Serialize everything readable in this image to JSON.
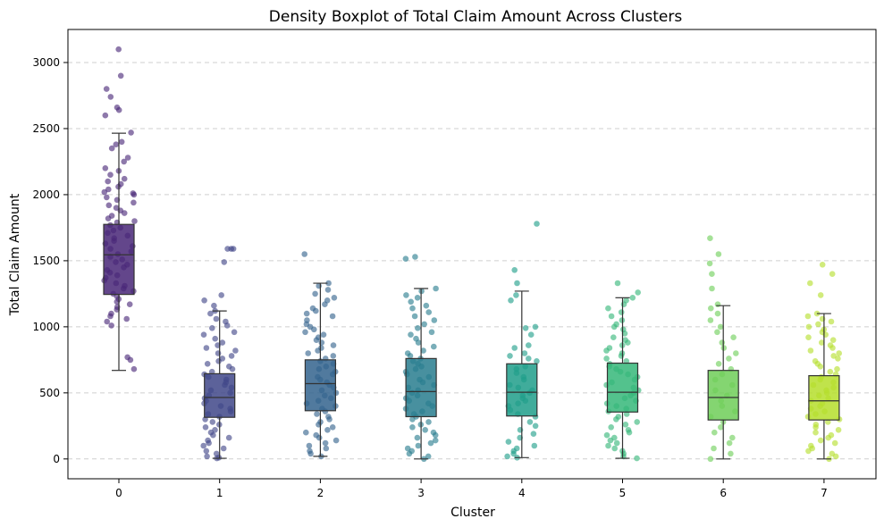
{
  "chart_data": {
    "type": "boxplot",
    "title": "Density Boxplot of Total Claim Amount Across Clusters",
    "xlabel": "Cluster",
    "ylabel": "Total Claim Amount",
    "categories": [
      "0",
      "1",
      "2",
      "3",
      "4",
      "5",
      "6",
      "7"
    ],
    "ylim": [
      -150,
      3250
    ],
    "yticks": [
      0,
      500,
      1000,
      1500,
      2000,
      2500,
      3000
    ],
    "grid": "horizontal-dashed",
    "boxes": [
      {
        "cluster": "0",
        "q1": 1245,
        "median": 1545,
        "q3": 1775,
        "whisker_low": 670,
        "whisker_high": 2465,
        "color": "#482677",
        "points": [
          3100,
          2900,
          2800,
          2740,
          2660,
          2640,
          2600,
          2470,
          2400,
          2380,
          2350,
          2280,
          2250,
          2200,
          2180,
          2150,
          2120,
          2100,
          2080,
          2060,
          2040,
          2020,
          2010,
          2000,
          1980,
          1960,
          1940,
          1920,
          1900,
          1880,
          1860,
          1840,
          1820,
          1800,
          1790,
          1770,
          1750,
          1730,
          1710,
          1690,
          1670,
          1650,
          1630,
          1610,
          1590,
          1570,
          1550,
          1530,
          1510,
          1490,
          1470,
          1450,
          1430,
          1410,
          1390,
          1370,
          1350,
          1330,
          1310,
          1290,
          1270,
          1250,
          1230,
          1210,
          1190,
          1170,
          1150,
          1130,
          1100,
          1080,
          1060,
          1040,
          1010,
          770,
          750,
          680
        ]
      },
      {
        "cluster": "1",
        "q1": 315,
        "median": 465,
        "q3": 645,
        "whisker_low": 5,
        "whisker_high": 1120,
        "color": "#404688",
        "points": [
          1590,
          1590,
          1590,
          1490,
          1240,
          1200,
          1160,
          1120,
          1100,
          1060,
          1040,
          1010,
          990,
          960,
          940,
          910,
          880,
          860,
          840,
          820,
          800,
          780,
          760,
          740,
          720,
          700,
          680,
          660,
          640,
          620,
          600,
          580,
          560,
          540,
          520,
          500,
          480,
          460,
          440,
          420,
          400,
          380,
          360,
          340,
          320,
          300,
          280,
          260,
          240,
          220,
          200,
          180,
          160,
          140,
          120,
          100,
          80,
          60,
          40,
          20,
          10,
          5
        ]
      },
      {
        "cluster": "2",
        "q1": 365,
        "median": 570,
        "q3": 750,
        "whisker_low": 20,
        "whisker_high": 1330,
        "color": "#33638d",
        "points": [
          1550,
          1330,
          1310,
          1280,
          1250,
          1220,
          1200,
          1170,
          1140,
          1120,
          1100,
          1080,
          1050,
          1020,
          1000,
          980,
          960,
          940,
          920,
          900,
          880,
          860,
          840,
          820,
          800,
          780,
          760,
          740,
          720,
          700,
          680,
          660,
          640,
          620,
          600,
          580,
          560,
          540,
          520,
          500,
          480,
          460,
          440,
          420,
          400,
          380,
          360,
          340,
          320,
          300,
          280,
          260,
          240,
          220,
          200,
          180,
          160,
          140,
          120,
          100,
          80,
          60,
          40,
          20
        ]
      },
      {
        "cluster": "3",
        "q1": 320,
        "median": 510,
        "q3": 760,
        "whisker_low": 0,
        "whisker_high": 1290,
        "color": "#287d8e",
        "points": [
          1530,
          1515,
          1290,
          1270,
          1240,
          1220,
          1190,
          1160,
          1140,
          1110,
          1080,
          1050,
          1020,
          990,
          960,
          940,
          910,
          880,
          850,
          820,
          800,
          780,
          760,
          740,
          720,
          700,
          680,
          660,
          640,
          620,
          600,
          580,
          560,
          540,
          520,
          500,
          480,
          460,
          440,
          420,
          400,
          380,
          360,
          340,
          320,
          300,
          280,
          260,
          240,
          220,
          200,
          180,
          160,
          140,
          120,
          100,
          80,
          60,
          40,
          20,
          0
        ]
      },
      {
        "cluster": "4",
        "q1": 325,
        "median": 505,
        "q3": 720,
        "whisker_low": 10,
        "whisker_high": 1270,
        "color": "#1f9e89",
        "points": [
          1780,
          1430,
          1330,
          1240,
          1200,
          1000,
          990,
          940,
          860,
          840,
          800,
          780,
          760,
          740,
          700,
          680,
          650,
          620,
          600,
          560,
          540,
          520,
          500,
          480,
          460,
          440,
          420,
          400,
          370,
          340,
          320,
          280,
          250,
          220,
          190,
          160,
          130,
          100,
          80,
          60,
          40,
          20,
          10
        ]
      },
      {
        "cluster": "5",
        "q1": 355,
        "median": 505,
        "q3": 725,
        "whisker_low": 5,
        "whisker_high": 1220,
        "color": "#35b779",
        "points": [
          1330,
          1260,
          1220,
          1200,
          1170,
          1140,
          1110,
          1080,
          1050,
          1020,
          1000,
          980,
          950,
          920,
          900,
          880,
          860,
          840,
          820,
          800,
          780,
          760,
          740,
          720,
          700,
          680,
          660,
          640,
          620,
          600,
          580,
          560,
          540,
          520,
          500,
          480,
          460,
          440,
          420,
          400,
          380,
          360,
          340,
          320,
          300,
          280,
          260,
          240,
          220,
          200,
          180,
          160,
          140,
          120,
          100,
          80,
          60,
          40,
          20,
          5
        ]
      },
      {
        "cluster": "6",
        "q1": 295,
        "median": 465,
        "q3": 670,
        "whisker_low": 0,
        "whisker_high": 1160,
        "color": "#6ece58",
        "points": [
          1670,
          1550,
          1480,
          1400,
          1290,
          1170,
          1140,
          1100,
          1050,
          1000,
          960,
          920,
          880,
          840,
          800,
          760,
          720,
          680,
          640,
          600,
          560,
          520,
          480,
          440,
          400,
          360,
          320,
          280,
          240,
          200,
          160,
          120,
          80,
          40,
          0
        ]
      },
      {
        "cluster": "7",
        "q1": 295,
        "median": 440,
        "q3": 630,
        "whisker_low": 0,
        "whisker_high": 1100,
        "color": "#b5de2b",
        "points": [
          1470,
          1400,
          1330,
          1240,
          1100,
          1080,
          1060,
          1040,
          1020,
          1000,
          980,
          960,
          940,
          920,
          900,
          880,
          860,
          840,
          820,
          800,
          780,
          760,
          740,
          720,
          700,
          680,
          660,
          640,
          620,
          600,
          580,
          560,
          540,
          520,
          500,
          480,
          460,
          440,
          420,
          400,
          380,
          360,
          340,
          320,
          300,
          280,
          260,
          240,
          220,
          200,
          180,
          160,
          140,
          120,
          100,
          80,
          60,
          40,
          20,
          0
        ]
      }
    ]
  }
}
